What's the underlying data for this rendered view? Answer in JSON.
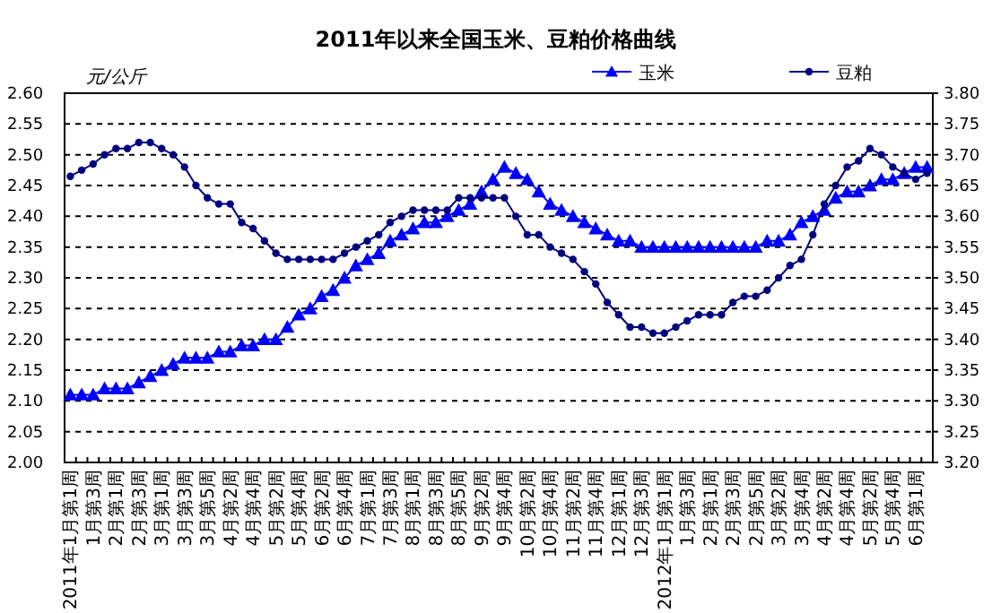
{
  "chart_data": {
    "type": "line",
    "title": "2011年以来全国玉米、豆粕价格曲线",
    "ylabel": "元/公斤",
    "categories": [
      "2011年1月第1周",
      null,
      "1月第3周",
      null,
      "2月第1周",
      null,
      "2月第3周",
      null,
      "3月第1周",
      null,
      "3月第3周",
      null,
      "3月第5周",
      null,
      "4月第2周",
      null,
      "4月第4周",
      null,
      "5月第2周",
      null,
      "5月第4周",
      null,
      "6月第2周",
      null,
      "6月第4周",
      null,
      "7月第1周",
      null,
      "7月第3周",
      null,
      "8月第1周",
      null,
      "8月第3周",
      null,
      "8月第5周",
      null,
      "9月第2周",
      null,
      "9月第4周",
      null,
      "10月第2周",
      null,
      "10月第4周",
      null,
      "11月第2周",
      null,
      "11月第4周",
      null,
      "12月第1周",
      null,
      "12月第3周",
      null,
      "2012年1月第1周",
      null,
      "1月第3周",
      null,
      "2月第1周",
      null,
      "2月第3周",
      null,
      "2月第5周",
      null,
      "3月第2周",
      null,
      "3月第4周",
      null,
      "4月第2周",
      null,
      "4月第4周",
      null,
      "5月第2周",
      null,
      "5月第4周",
      null,
      "6月第1周",
      null
    ],
    "series": [
      {
        "name": "玉米",
        "color": "#0000ff",
        "marker": "triangle",
        "values": [
          2.11,
          2.11,
          2.11,
          2.12,
          2.12,
          2.12,
          2.13,
          2.14,
          2.15,
          2.16,
          2.17,
          2.17,
          2.17,
          2.18,
          2.18,
          2.19,
          2.19,
          2.2,
          2.2,
          2.22,
          2.24,
          2.25,
          2.27,
          2.28,
          2.3,
          2.32,
          2.33,
          2.34,
          2.36,
          2.37,
          2.38,
          2.39,
          2.39,
          2.4,
          2.41,
          2.42,
          2.44,
          2.46,
          2.48,
          2.47,
          2.46,
          2.44,
          2.42,
          2.41,
          2.4,
          2.39,
          2.38,
          2.37,
          2.36,
          2.36,
          2.35,
          2.35,
          2.35,
          2.35,
          2.35,
          2.35,
          2.35,
          2.35,
          2.35,
          2.35,
          2.35,
          2.36,
          2.36,
          2.37,
          2.39,
          2.4,
          2.41,
          2.43,
          2.44,
          2.44,
          2.45,
          2.46,
          2.46,
          2.47,
          2.48,
          2.48
        ]
      },
      {
        "name": "豆粕",
        "color": "#000080",
        "marker": "circle",
        "axis": "y2",
        "values": [
          3.665,
          3.675,
          3.685,
          3.7,
          3.71,
          3.71,
          3.72,
          3.72,
          3.71,
          3.7,
          3.68,
          3.65,
          3.63,
          3.62,
          3.62,
          3.59,
          3.58,
          3.56,
          3.54,
          3.53,
          3.53,
          3.53,
          3.53,
          3.53,
          3.54,
          3.55,
          3.56,
          3.57,
          3.59,
          3.6,
          3.61,
          3.61,
          3.61,
          3.61,
          3.63,
          3.63,
          3.63,
          3.63,
          3.63,
          3.6,
          3.57,
          3.57,
          3.55,
          3.54,
          3.53,
          3.51,
          3.49,
          3.46,
          3.44,
          3.42,
          3.42,
          3.41,
          3.41,
          3.42,
          3.43,
          3.44,
          3.44,
          3.44,
          3.46,
          3.47,
          3.47,
          3.48,
          3.5,
          3.52,
          3.53,
          3.57,
          3.62,
          3.65,
          3.68,
          3.69,
          3.71,
          3.7,
          3.68,
          3.67,
          3.66,
          3.67
        ]
      }
    ],
    "ylim": [
      2.0,
      2.6
    ],
    "yticks": [
      {
        "value": 2.0,
        "label": "2.00"
      },
      {
        "value": 2.05,
        "label": "2.05"
      },
      {
        "value": 2.1,
        "label": "2.10"
      },
      {
        "value": 2.15,
        "label": "2.15"
      },
      {
        "value": 2.2,
        "label": "2.20"
      },
      {
        "value": 2.25,
        "label": "2.25"
      },
      {
        "value": 2.3,
        "label": "2.30"
      },
      {
        "value": 2.35,
        "label": "2.35"
      },
      {
        "value": 2.4,
        "label": "2.40"
      },
      {
        "value": 2.45,
        "label": "2.45"
      },
      {
        "value": 2.5,
        "label": "2.50"
      },
      {
        "value": 2.55,
        "label": "2.55"
      },
      {
        "value": 2.6,
        "label": "2.60"
      }
    ],
    "y2lim": [
      3.2,
      3.8
    ],
    "y2ticks": [
      {
        "value": 3.2,
        "label": "3.20"
      },
      {
        "value": 3.25,
        "label": "3.25"
      },
      {
        "value": 3.3,
        "label": "3.30"
      },
      {
        "value": 3.35,
        "label": "3.35"
      },
      {
        "value": 3.4,
        "label": "3.40"
      },
      {
        "value": 3.45,
        "label": "3.45"
      },
      {
        "value": 3.5,
        "label": "3.50"
      },
      {
        "value": 3.55,
        "label": "3.55"
      },
      {
        "value": 3.6,
        "label": "3.60"
      },
      {
        "value": 3.65,
        "label": "3.65"
      },
      {
        "value": 3.7,
        "label": "3.70"
      },
      {
        "value": 3.75,
        "label": "3.75"
      },
      {
        "value": 3.8,
        "label": "3.80"
      }
    ],
    "grid": "y",
    "legend": "top right",
    "line_style": "solid"
  }
}
